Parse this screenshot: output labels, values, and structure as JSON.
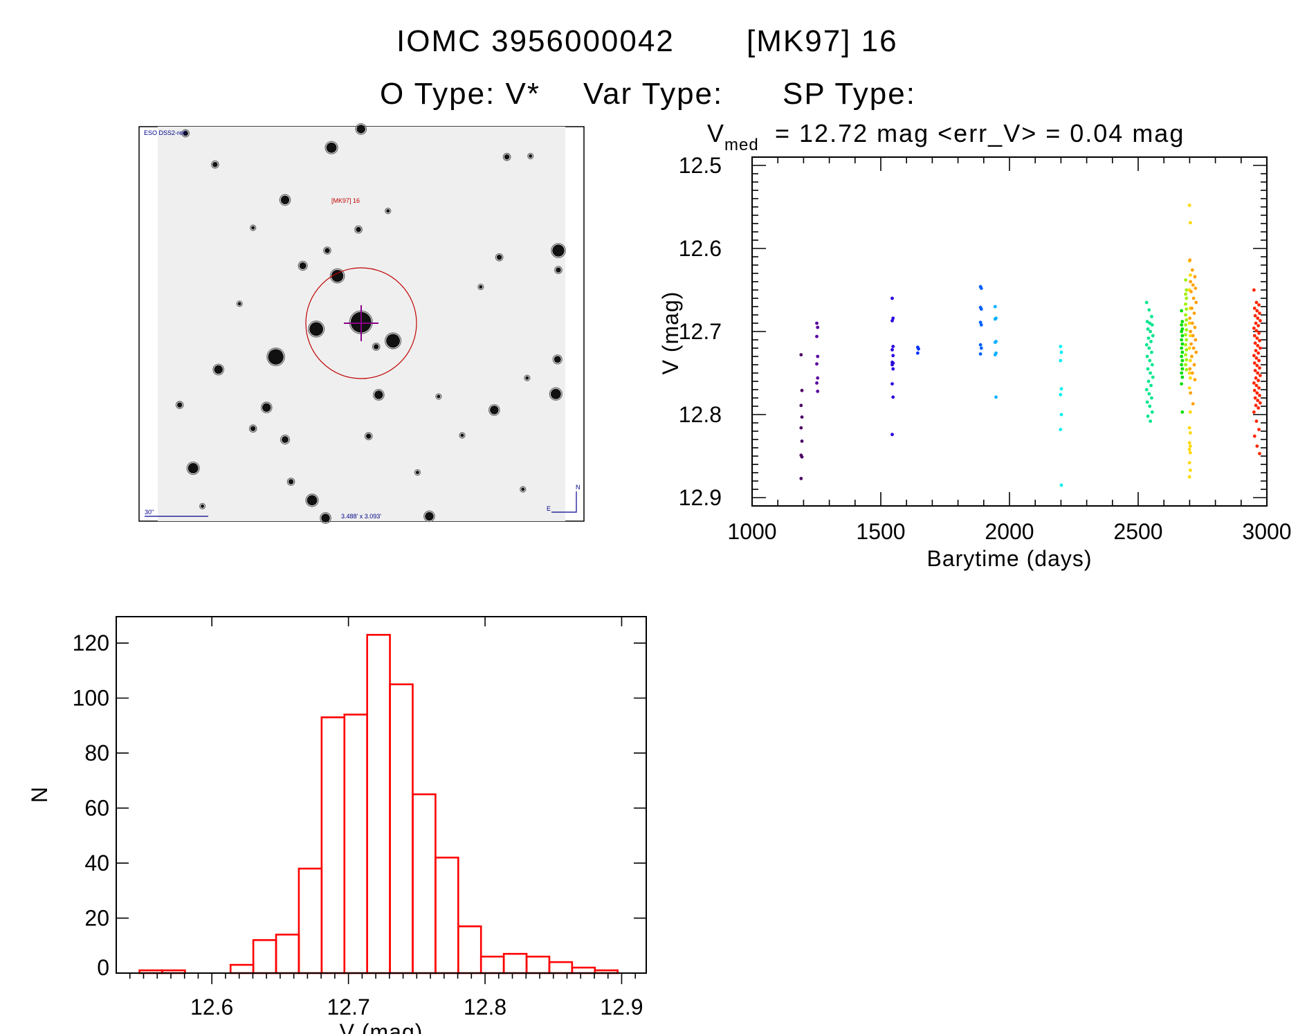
{
  "header": {
    "object_id": "IOMC 3956000042",
    "object_name": "[MK97] 16",
    "o_type": "O Type: V*",
    "var_type": "Var Type:",
    "sp_type": "SP Type:"
  },
  "finder_image": {
    "survey_label": "ESO DSS2-red",
    "target_label": "[MK97] 16",
    "scale_bar_label": "30\"",
    "field_size_label": "3.488' x 3.093'",
    "north_label": "N",
    "east_label": "E"
  },
  "chart_data": [
    {
      "type": "scatter",
      "title_prefix": "V",
      "title_sub": "med",
      "title_rest": "= 12.72 mag <err_V> = 0.04 mag",
      "xlabel": "Barytime (days)",
      "ylabel": "V (mag)",
      "xlim": [
        1000,
        3000
      ],
      "ylim": [
        12.91,
        12.49
      ],
      "xticks": [
        "1000",
        "1500",
        "2000",
        "2500",
        "3000"
      ],
      "yticks": [
        "12.5",
        "12.6",
        "12.7",
        "12.8",
        "12.9"
      ],
      "series": [
        {
          "color": "#4b0062",
          "x": 1192,
          "y": [
            12.728,
            12.771,
            12.789,
            12.803,
            12.816,
            12.832,
            12.849,
            12.851,
            12.877
          ]
        },
        {
          "color": "#5a00a0",
          "x": 1253,
          "y": [
            12.69,
            12.695,
            12.706,
            12.73,
            12.739,
            12.756,
            12.762,
            12.772
          ]
        },
        {
          "color": "#2a00e0",
          "x": 1546,
          "y": [
            12.66,
            12.684,
            12.687,
            12.718,
            12.722,
            12.729,
            12.737,
            12.738,
            12.74,
            12.745,
            12.763,
            12.779,
            12.824
          ]
        },
        {
          "color": "#0030ff",
          "x": 1645,
          "y": [
            12.719,
            12.721,
            12.726
          ]
        },
        {
          "color": "#0060ff",
          "x": 1889,
          "y": [
            12.646,
            12.648,
            12.671,
            12.673,
            12.689,
            12.692,
            12.716,
            12.72,
            12.727
          ]
        },
        {
          "color": "#00b0ff",
          "x": 1946,
          "y": [
            12.67,
            12.684,
            12.685,
            12.712,
            12.713,
            12.726,
            12.728,
            12.779
          ]
        },
        {
          "color": "#00f0f0",
          "x": 2200,
          "y": [
            12.718,
            12.725,
            12.735,
            12.769,
            12.776,
            12.8,
            12.818,
            12.885
          ]
        },
        {
          "color": "#00e68c",
          "x": 2545,
          "y": [
            12.665,
            12.674,
            12.682,
            12.688,
            12.69,
            12.692,
            12.697,
            12.7,
            12.705,
            12.708,
            12.712,
            12.716,
            12.72,
            12.725,
            12.73,
            12.735,
            12.74,
            12.745,
            12.75,
            12.755,
            12.76,
            12.765,
            12.77,
            12.775,
            12.78,
            12.785,
            12.79,
            12.797,
            12.802,
            12.808
          ]
        },
        {
          "color": "#00dd00",
          "x": 2670,
          "y": [
            12.675,
            12.688,
            12.692,
            12.697,
            12.7,
            12.705,
            12.71,
            12.715,
            12.72,
            12.725,
            12.73,
            12.735,
            12.74,
            12.745,
            12.75,
            12.755,
            12.763,
            12.797
          ]
        },
        {
          "color": "#a0f000",
          "x": 2686,
          "y": [
            12.638,
            12.65,
            12.655,
            12.66,
            12.667,
            12.673,
            12.68,
            12.686,
            12.692,
            12.698,
            12.704,
            12.71,
            12.716,
            12.722,
            12.728,
            12.734,
            12.74,
            12.746
          ]
        },
        {
          "color": "#ffd800",
          "x": 2701,
          "y": [
            12.548,
            12.569,
            12.615,
            12.632,
            12.65,
            12.672,
            12.69,
            12.705,
            12.72,
            12.735,
            12.75,
            12.756,
            12.768,
            12.797,
            12.816,
            12.822,
            12.834,
            12.838,
            12.842,
            12.846,
            12.858,
            12.867,
            12.875
          ]
        },
        {
          "color": "#ffa000",
          "x": 2713,
          "y": [
            12.614,
            12.626,
            12.634,
            12.64,
            12.644,
            12.648,
            12.652,
            12.66,
            12.665,
            12.672,
            12.678,
            12.684,
            12.69,
            12.695,
            12.7,
            12.705,
            12.71,
            12.715,
            12.72,
            12.725,
            12.73,
            12.74,
            12.745,
            12.75,
            12.758,
            12.774,
            12.787
          ]
        },
        {
          "color": "#ff2400",
          "x": 2962,
          "y": [
            12.65,
            12.665,
            12.668,
            12.672,
            12.675,
            12.678,
            12.681,
            12.684,
            12.687,
            12.69,
            12.693,
            12.696,
            12.699,
            12.702,
            12.705,
            12.708,
            12.711,
            12.714,
            12.717,
            12.72,
            12.723,
            12.726,
            12.729,
            12.732,
            12.735,
            12.738,
            12.741,
            12.744,
            12.747,
            12.75,
            12.753,
            12.756,
            12.759,
            12.762,
            12.765,
            12.768,
            12.771,
            12.774,
            12.777,
            12.78,
            12.783,
            12.786,
            12.789,
            12.792,
            12.797,
            12.808,
            12.818,
            12.826,
            12.838,
            12.847
          ]
        }
      ]
    },
    {
      "type": "bar",
      "style": "histogram-outline",
      "color": "#ff0000",
      "xlabel": "V (mag)",
      "ylabel": "N",
      "xlim": [
        12.53,
        12.918
      ],
      "ylim": [
        0,
        129.6
      ],
      "bin_start": 12.547,
      "bin_width": 0.01667,
      "values": [
        1,
        1,
        0,
        0,
        3,
        12,
        14,
        38,
        93,
        94,
        123,
        105,
        65,
        42,
        17,
        6,
        7,
        6,
        4,
        2,
        1
      ],
      "xticks": [
        "12.6",
        "12.7",
        "12.8",
        "12.9"
      ],
      "yticks": [
        "0",
        "20",
        "40",
        "60",
        "80",
        "100",
        "120"
      ]
    }
  ]
}
